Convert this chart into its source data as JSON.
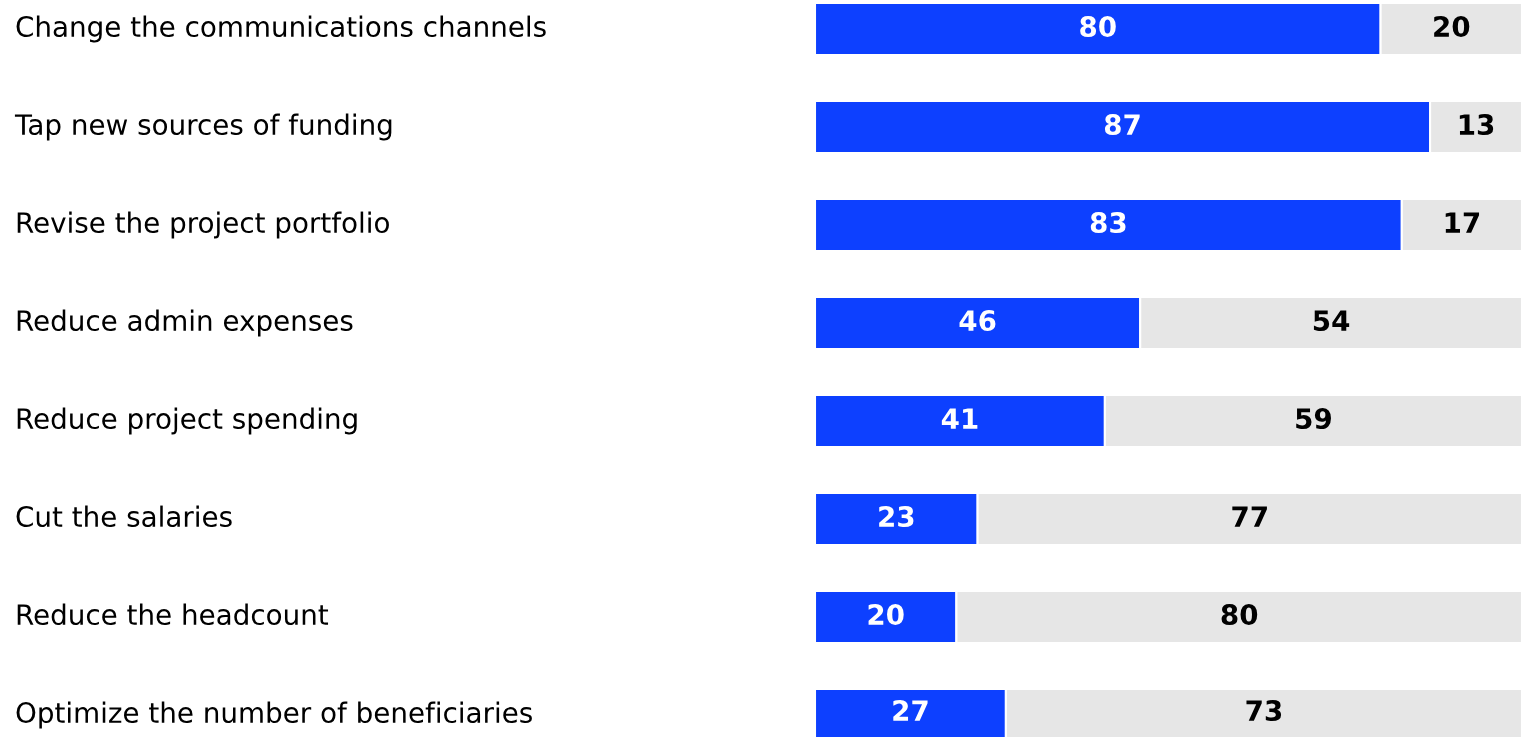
{
  "chart_data": {
    "type": "bar",
    "orientation": "horizontal",
    "stacked": true,
    "data_labels": true,
    "tick_labels": "y",
    "legend": false,
    "categories": [
      "Change the communications channels",
      "Tap new sources of funding",
      "Revise the project portfolio",
      "Reduce admin expenses",
      "Reduce project spending",
      "Cut the salaries",
      "Reduce the headcount",
      "Optimize the number of beneficiaries"
    ],
    "xlim": [
      0,
      100
    ],
    "series": [
      {
        "color": "#0d40ff",
        "values": [
          80,
          87,
          83,
          46,
          41,
          23,
          20,
          27
        ]
      },
      {
        "color": "#e6e6e6",
        "values": [
          20,
          13,
          17,
          54,
          59,
          77,
          80,
          73
        ]
      }
    ]
  }
}
